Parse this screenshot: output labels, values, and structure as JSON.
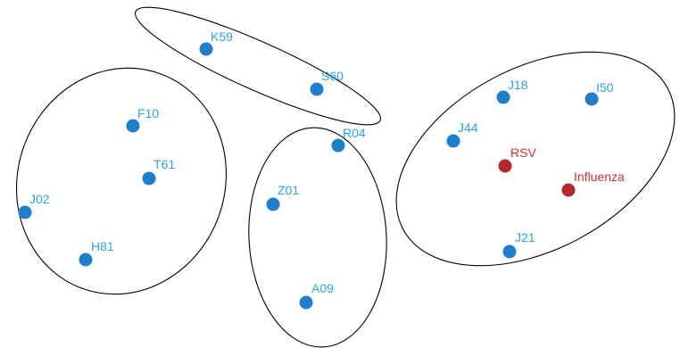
{
  "colors": {
    "code_node": "#1f7fcf",
    "code_label": "#2aa3f0",
    "pathogen_node": "#b3282d",
    "pathogen_label": "#cf2f35",
    "ellipse_stroke": "#000000",
    "background": "#ffffff"
  },
  "clusters": [
    {
      "name": "cluster-left",
      "members": [
        "F10",
        "T61",
        "J02",
        "H81"
      ]
    },
    {
      "name": "cluster-top",
      "members": [
        "K59",
        "S60"
      ]
    },
    {
      "name": "cluster-middle",
      "members": [
        "R04",
        "Z01",
        "A09"
      ]
    },
    {
      "name": "cluster-right",
      "members": [
        "J18",
        "I50",
        "J44",
        "RSV",
        "Influenza",
        "J21"
      ]
    }
  ],
  "nodes": [
    {
      "id": "K59",
      "label": "K59",
      "kind": "code"
    },
    {
      "id": "S60",
      "label": "S60",
      "kind": "code"
    },
    {
      "id": "F10",
      "label": "F10",
      "kind": "code"
    },
    {
      "id": "T61",
      "label": "T61",
      "kind": "code"
    },
    {
      "id": "J02",
      "label": "J02",
      "kind": "code"
    },
    {
      "id": "H81",
      "label": "H81",
      "kind": "code"
    },
    {
      "id": "R04",
      "label": "R04",
      "kind": "code"
    },
    {
      "id": "Z01",
      "label": "Z01",
      "kind": "code"
    },
    {
      "id": "A09",
      "label": "A09",
      "kind": "code"
    },
    {
      "id": "J18",
      "label": "J18",
      "kind": "code"
    },
    {
      "id": "I50",
      "label": "I50",
      "kind": "code"
    },
    {
      "id": "J44",
      "label": "J44",
      "kind": "code"
    },
    {
      "id": "RSV",
      "label": "RSV",
      "kind": "pathogen"
    },
    {
      "id": "Influenza",
      "label": "Influenza",
      "kind": "pathogen"
    },
    {
      "id": "J21",
      "label": "J21",
      "kind": "code"
    }
  ]
}
